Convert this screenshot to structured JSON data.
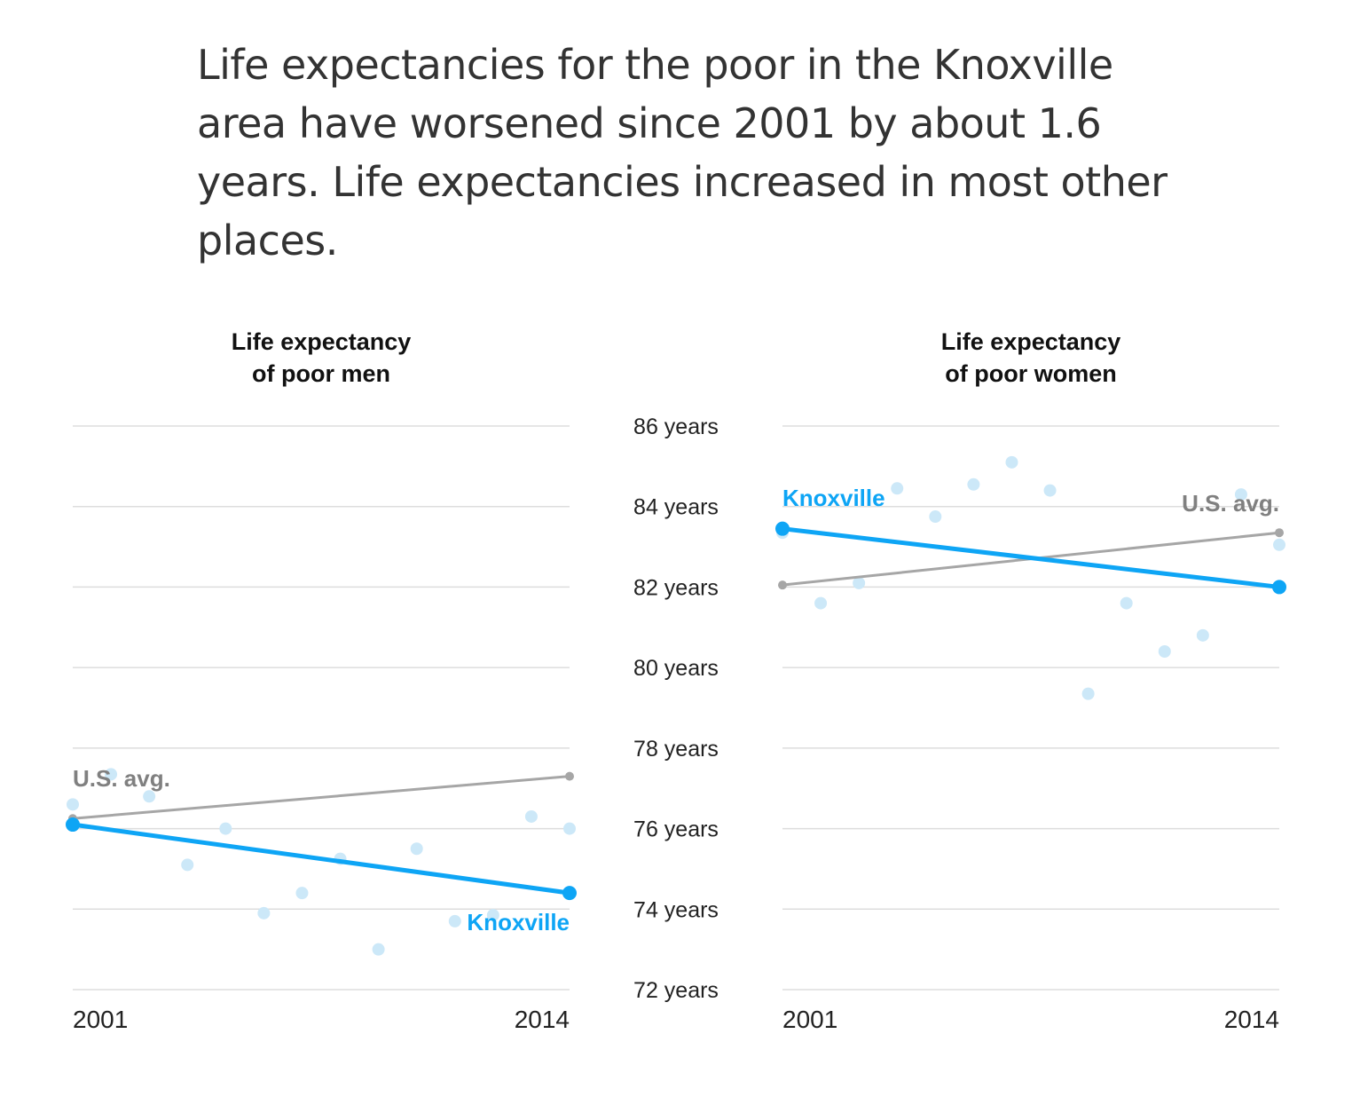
{
  "headline": "Life expectancies for the poor in the Knoxville area have worsened since 2001 by about 1.6 years. Life expectancies increased in most other places.",
  "colors": {
    "knoxville": "#0ea5f5",
    "us_avg": "#a6a6a6",
    "dots": "#cce8f8",
    "us_label": "#808080",
    "grid": "#dddddd"
  },
  "chart_data": [
    {
      "type": "line",
      "title_lines": [
        "Life expectancy",
        "of poor men"
      ],
      "x_ticks": [
        "2001",
        "2014"
      ],
      "xlim": [
        2001,
        2014
      ],
      "ylim": [
        72,
        86
      ],
      "y_ticks": [
        72,
        74,
        76,
        78,
        80,
        82,
        84,
        86
      ],
      "grid": true,
      "series": [
        {
          "name": "U.S. avg.",
          "x": [
            2001,
            2014
          ],
          "y": [
            76.25,
            77.3
          ]
        },
        {
          "name": "Knoxville",
          "x": [
            2001,
            2014
          ],
          "y": [
            76.1,
            74.4
          ]
        }
      ],
      "points": {
        "x": [
          2001,
          2002,
          2003,
          2004,
          2005,
          2006,
          2007,
          2008,
          2009,
          2010,
          2011,
          2012,
          2013,
          2014
        ],
        "y": [
          76.6,
          77.35,
          76.8,
          75.1,
          76.0,
          73.9,
          74.4,
          75.25,
          73.0,
          75.5,
          73.7,
          73.85,
          76.3,
          76.0
        ]
      }
    },
    {
      "type": "line",
      "title_lines": [
        "Life expectancy",
        "of poor women"
      ],
      "x_ticks": [
        "2001",
        "2014"
      ],
      "xlim": [
        2001,
        2014
      ],
      "ylim": [
        72,
        86
      ],
      "y_ticks": [
        72,
        74,
        76,
        78,
        80,
        82,
        84,
        86
      ],
      "grid": true,
      "series": [
        {
          "name": "U.S. avg.",
          "x": [
            2001,
            2014
          ],
          "y": [
            82.05,
            83.35
          ]
        },
        {
          "name": "Knoxville",
          "x": [
            2001,
            2014
          ],
          "y": [
            83.45,
            82.0
          ]
        }
      ],
      "points": {
        "x": [
          2001,
          2002,
          2003,
          2004,
          2005,
          2006,
          2007,
          2008,
          2009,
          2010,
          2011,
          2012,
          2013,
          2014
        ],
        "y": [
          83.35,
          81.6,
          82.1,
          84.45,
          83.75,
          84.55,
          85.1,
          84.4,
          79.35,
          81.6,
          80.4,
          80.8,
          84.3,
          83.05
        ]
      }
    }
  ],
  "y_axis_labels": [
    "86 years",
    "84 years",
    "82 years",
    "80 years",
    "78 years",
    "76 years",
    "74 years",
    "72 years"
  ]
}
